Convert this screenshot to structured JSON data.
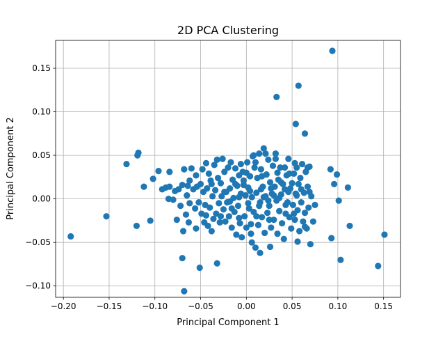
{
  "chart_data": {
    "type": "scatter",
    "title": "2D PCA Clustering",
    "xlabel": "Principal Component 1",
    "ylabel": "Principal Component 2",
    "xlim": [
      -0.2085,
      0.1685
    ],
    "ylim": [
      -0.113,
      0.182
    ],
    "xticks": [
      -0.2,
      -0.15,
      -0.1,
      -0.05,
      0.0,
      0.05,
      0.1,
      0.15
    ],
    "xtick_labels": [
      "−0.20",
      "−0.15",
      "−0.10",
      "−0.05",
      "0.00",
      "0.05",
      "0.10",
      "0.15"
    ],
    "yticks": [
      -0.1,
      -0.05,
      0.0,
      0.05,
      0.1,
      0.15
    ],
    "ytick_labels": [
      "−0.10",
      "−0.05",
      "0.00",
      "0.05",
      "0.10",
      "0.15"
    ],
    "grid": true,
    "marker_color": "#1f77b4",
    "points": [
      [
        0.094,
        0.17
      ],
      [
        0.057,
        0.13
      ],
      [
        0.033,
        0.117
      ],
      [
        0.054,
        0.086
      ],
      [
        0.064,
        0.075
      ],
      [
        -0.192,
        -0.043
      ],
      [
        -0.153,
        -0.02
      ],
      [
        -0.131,
        0.04
      ],
      [
        -0.119,
        0.05
      ],
      [
        -0.118,
        0.053
      ],
      [
        -0.12,
        -0.031
      ],
      [
        -0.112,
        0.014
      ],
      [
        -0.105,
        -0.025
      ],
      [
        -0.102,
        0.023
      ],
      [
        -0.096,
        0.032
      ],
      [
        -0.092,
        0.011
      ],
      [
        -0.088,
        0.013
      ],
      [
        -0.085,
        0.0
      ],
      [
        -0.084,
        0.014
      ],
      [
        -0.084,
        0.031
      ],
      [
        -0.08,
        -0.001
      ],
      [
        -0.078,
        0.009
      ],
      [
        -0.076,
        -0.024
      ],
      [
        -0.074,
        0.011
      ],
      [
        -0.072,
        -0.008
      ],
      [
        -0.07,
        0.016
      ],
      [
        -0.069,
        -0.037
      ],
      [
        -0.068,
        0.034
      ],
      [
        -0.066,
        -0.018
      ],
      [
        -0.065,
        0.004
      ],
      [
        -0.064,
        0.015
      ],
      [
        -0.063,
        -0.027
      ],
      [
        -0.062,
        -0.005
      ],
      [
        -0.06,
        0.035
      ],
      [
        -0.058,
        0.011
      ],
      [
        -0.056,
        -0.011
      ],
      [
        -0.055,
        -0.034
      ],
      [
        -0.054,
        0.014
      ],
      [
        -0.052,
        -0.004
      ],
      [
        -0.05,
        0.017
      ],
      [
        -0.049,
        -0.017
      ],
      [
        -0.048,
        0.034
      ],
      [
        -0.047,
        0.008
      ],
      [
        -0.046,
        -0.027
      ],
      [
        -0.045,
        -0.007
      ],
      [
        -0.044,
        0.041
      ],
      [
        -0.043,
        0.012
      ],
      [
        -0.042,
        -0.031
      ],
      [
        -0.041,
        0.029
      ],
      [
        -0.04,
        -0.01
      ],
      [
        -0.039,
        0.021
      ],
      [
        -0.038,
        -0.037
      ],
      [
        -0.037,
        0.003
      ],
      [
        -0.036,
        -0.023
      ],
      [
        -0.035,
        0.039
      ],
      [
        -0.034,
        0.01
      ],
      [
        -0.033,
        -0.017
      ],
      [
        -0.032,
        0.045
      ],
      [
        -0.031,
        0.024
      ],
      [
        -0.03,
        -0.005
      ],
      [
        -0.029,
        -0.027
      ],
      [
        -0.028,
        0.018
      ],
      [
        -0.027,
        0.003
      ],
      [
        -0.026,
        0.046
      ],
      [
        -0.025,
        -0.012
      ],
      [
        -0.024,
        0.031
      ],
      [
        -0.023,
        -0.026
      ],
      [
        -0.022,
        0.008
      ],
      [
        -0.021,
        -0.004
      ],
      [
        -0.02,
        0.036
      ],
      [
        -0.019,
        -0.02
      ],
      [
        -0.018,
        0.012
      ],
      [
        -0.017,
        0.042
      ],
      [
        -0.016,
        -0.033
      ],
      [
        -0.015,
        0.022
      ],
      [
        -0.014,
        0.001
      ],
      [
        -0.013,
        -0.015
      ],
      [
        -0.012,
        0.035
      ],
      [
        -0.011,
        -0.041
      ],
      [
        -0.01,
        0.015
      ],
      [
        -0.009,
        -0.008
      ],
      [
        -0.008,
        0.027
      ],
      [
        -0.007,
        -0.028
      ],
      [
        -0.006,
        0.006
      ],
      [
        -0.005,
        -0.044
      ],
      [
        -0.004,
        0.031
      ],
      [
        -0.003,
        0.016
      ],
      [
        -0.002,
        -0.02
      ],
      [
        -0.001,
        0.004
      ],
      [
        0.0,
        -0.033
      ],
      [
        0.001,
        0.042
      ],
      [
        0.002,
        0.013
      ],
      [
        0.003,
        -0.011
      ],
      [
        0.004,
        0.026
      ],
      [
        0.005,
        -0.029
      ],
      [
        0.006,
        0.002
      ],
      [
        0.007,
        0.049
      ],
      [
        0.008,
        -0.015
      ],
      [
        0.009,
        0.036
      ],
      [
        0.01,
        -0.056
      ],
      [
        0.011,
        0.007
      ],
      [
        0.012,
        0.024
      ],
      [
        0.013,
        -0.03
      ],
      [
        0.014,
        0.052
      ],
      [
        0.015,
        -0.004
      ],
      [
        0.016,
        0.034
      ],
      [
        0.017,
        -0.021
      ],
      [
        0.018,
        0.014
      ],
      [
        0.019,
        0.058
      ],
      [
        0.02,
        -0.039
      ],
      [
        0.021,
        0.003
      ],
      [
        0.022,
        0.028
      ],
      [
        0.023,
        -0.016
      ],
      [
        0.024,
        0.045
      ],
      [
        0.025,
        -0.008
      ],
      [
        0.026,
        0.019
      ],
      [
        0.027,
        -0.033
      ],
      [
        0.028,
        0.006
      ],
      [
        0.029,
        0.038
      ],
      [
        0.03,
        -0.024
      ],
      [
        0.031,
        0.014
      ],
      [
        0.032,
        0.052
      ],
      [
        0.033,
        -0.002
      ],
      [
        0.034,
        -0.04
      ],
      [
        0.035,
        0.022
      ],
      [
        0.036,
        -0.014
      ],
      [
        0.037,
        0.036
      ],
      [
        0.038,
        0.005
      ],
      [
        0.039,
        -0.028
      ],
      [
        0.04,
        0.017
      ],
      [
        0.041,
        -0.046
      ],
      [
        0.042,
        0.011
      ],
      [
        0.043,
        -0.017
      ],
      [
        0.044,
        0.027
      ],
      [
        0.045,
        -0.004
      ],
      [
        0.046,
        0.046
      ],
      [
        0.047,
        -0.021
      ],
      [
        0.048,
        0.012
      ],
      [
        0.049,
        -0.034
      ],
      [
        0.05,
        0.018
      ],
      [
        0.051,
        -0.007
      ],
      [
        0.052,
        0.029
      ],
      [
        0.053,
        -0.024
      ],
      [
        0.054,
        0.006
      ],
      [
        0.055,
        0.036
      ],
      [
        0.056,
        -0.013
      ],
      [
        0.057,
        0.017
      ],
      [
        0.058,
        -0.037
      ],
      [
        0.059,
        0.024
      ],
      [
        0.06,
        -0.004
      ],
      [
        0.061,
        0.04
      ],
      [
        0.062,
        -0.026
      ],
      [
        0.063,
        0.007
      ],
      [
        0.064,
        -0.016
      ],
      [
        0.065,
        0.031
      ],
      [
        0.066,
        -0.034
      ],
      [
        0.067,
        0.014
      ],
      [
        0.068,
        -0.01
      ],
      [
        0.069,
        0.037
      ],
      [
        0.07,
        -0.052
      ],
      [
        0.071,
        0.003
      ],
      [
        0.073,
        -0.026
      ],
      [
        0.075,
        -0.007
      ],
      [
        0.092,
        0.034
      ],
      [
        0.093,
        -0.045
      ],
      [
        0.096,
        0.017
      ],
      [
        0.099,
        0.028
      ],
      [
        0.101,
        -0.002
      ],
      [
        0.103,
        -0.07
      ],
      [
        0.111,
        0.013
      ],
      [
        0.113,
        -0.031
      ],
      [
        0.144,
        -0.077
      ],
      [
        0.151,
        -0.041
      ],
      [
        -0.051,
        -0.079
      ],
      [
        -0.068,
        -0.106
      ],
      [
        -0.07,
        -0.068
      ],
      [
        -0.032,
        -0.074
      ],
      [
        0.006,
        -0.05
      ],
      [
        0.015,
        -0.062
      ],
      [
        0.026,
        -0.055
      ],
      [
        0.056,
        -0.049
      ],
      [
        0.042,
        0.036
      ],
      [
        0.053,
        0.041
      ],
      [
        0.067,
        0.036
      ],
      [
        -0.006,
        0.04
      ],
      [
        0.008,
        0.05
      ],
      [
        0.021,
        0.052
      ],
      [
        0.032,
        0.046
      ],
      [
        0.01,
        0.042
      ],
      [
        -0.003,
        0.021
      ],
      [
        -0.012,
        0.017
      ],
      [
        0.002,
        -0.005
      ],
      [
        0.014,
        -0.008
      ],
      [
        0.019,
        0.002
      ],
      [
        0.024,
        -0.002
      ],
      [
        0.03,
        0.004
      ],
      [
        0.036,
        0.001
      ],
      [
        0.011,
        -0.02
      ],
      [
        0.004,
        0.009
      ],
      [
        -0.008,
        0.002
      ],
      [
        -0.018,
        -0.003
      ],
      [
        -0.024,
        0.008
      ],
      [
        -0.016,
        -0.011
      ],
      [
        0.016,
        0.011
      ],
      [
        0.027,
        0.012
      ],
      [
        0.038,
        0.019
      ],
      [
        0.046,
        0.008
      ],
      [
        0.052,
        -0.017
      ],
      [
        0.06,
        0.011
      ],
      [
        0.047,
        0.029
      ],
      [
        -0.028,
        -0.02
      ],
      [
        -0.038,
        0.017
      ],
      [
        -0.044,
        -0.019
      ],
      [
        -0.055,
        0.027
      ],
      [
        -0.062,
        0.021
      ],
      [
        -0.008,
        -0.022
      ],
      [
        0.0,
        0.03
      ],
      [
        0.005,
        -0.04
      ],
      [
        0.017,
        0.026
      ],
      [
        0.025,
        -0.024
      ],
      [
        0.034,
        0.03
      ],
      [
        0.043,
        -0.007
      ],
      [
        0.055,
        0.004
      ],
      [
        0.064,
        -0.032
      ],
      [
        0.069,
        0.008
      ]
    ]
  }
}
